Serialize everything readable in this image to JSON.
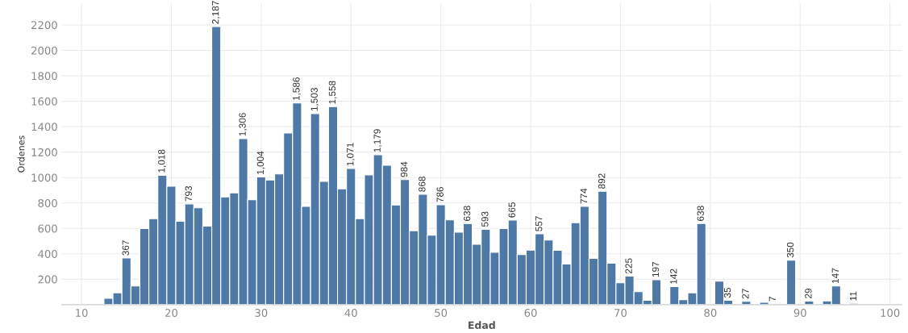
{
  "chart_data": {
    "type": "bar",
    "xlabel": "Edad",
    "ylabel": "Ordenes",
    "x": [
      13,
      14,
      15,
      16,
      17,
      18,
      19,
      20,
      21,
      22,
      23,
      24,
      25,
      26,
      27,
      28,
      29,
      30,
      31,
      32,
      33,
      34,
      35,
      36,
      37,
      38,
      39,
      40,
      41,
      42,
      43,
      44,
      45,
      46,
      47,
      48,
      49,
      50,
      51,
      52,
      53,
      54,
      55,
      56,
      57,
      58,
      59,
      60,
      61,
      62,
      63,
      64,
      65,
      66,
      67,
      68,
      69,
      70,
      71,
      72,
      73,
      74,
      76,
      77,
      78,
      79,
      81,
      82,
      84,
      86,
      87,
      89,
      91,
      93,
      94,
      96
    ],
    "values": [
      51,
      94,
      367,
      147,
      599,
      677,
      1018,
      932,
      656,
      793,
      762,
      618,
      2187,
      847,
      879,
      1306,
      826,
      1004,
      981,
      1028,
      1350,
      1586,
      773,
      1503,
      970,
      1558,
      911,
      1071,
      677,
      1021,
      1179,
      1096,
      784,
      984,
      582,
      868,
      546,
      786,
      667,
      571,
      638,
      476,
      593,
      412,
      599,
      665,
      395,
      429,
      557,
      508,
      427,
      320,
      645,
      774,
      365,
      892,
      327,
      172,
      225,
      102,
      34,
      197,
      142,
      40,
      94,
      638,
      185,
      35,
      27,
      19,
      7,
      350,
      29,
      30,
      147,
      11
    ],
    "value_labels": [
      null,
      null,
      "367",
      null,
      null,
      null,
      "1,018",
      null,
      null,
      "793",
      null,
      null,
      "2,187",
      null,
      null,
      "1,306",
      null,
      "1,004",
      null,
      null,
      null,
      "1,586",
      null,
      "1,503",
      null,
      "1,558",
      null,
      "1,071",
      null,
      null,
      "1,179",
      null,
      null,
      "984",
      null,
      "868",
      null,
      "786",
      null,
      null,
      "638",
      null,
      "593",
      null,
      null,
      "665",
      null,
      null,
      "557",
      null,
      null,
      null,
      null,
      "774",
      null,
      "892",
      null,
      null,
      "225",
      null,
      null,
      "197",
      "142",
      null,
      null,
      "638",
      null,
      "35",
      "27",
      null,
      "7",
      "350",
      "29",
      null,
      "147",
      "11"
    ],
    "color": "#4e78a6",
    "xlim": [
      7.8,
      101.3
    ],
    "xticks": [
      10,
      20,
      30,
      40,
      50,
      60,
      70,
      80,
      90,
      100
    ],
    "ylim": [
      0,
      2370
    ],
    "yticks": [
      200,
      400,
      600,
      800,
      1000,
      1200,
      1400,
      1600,
      1800,
      2000,
      2200
    ],
    "grid": true
  }
}
